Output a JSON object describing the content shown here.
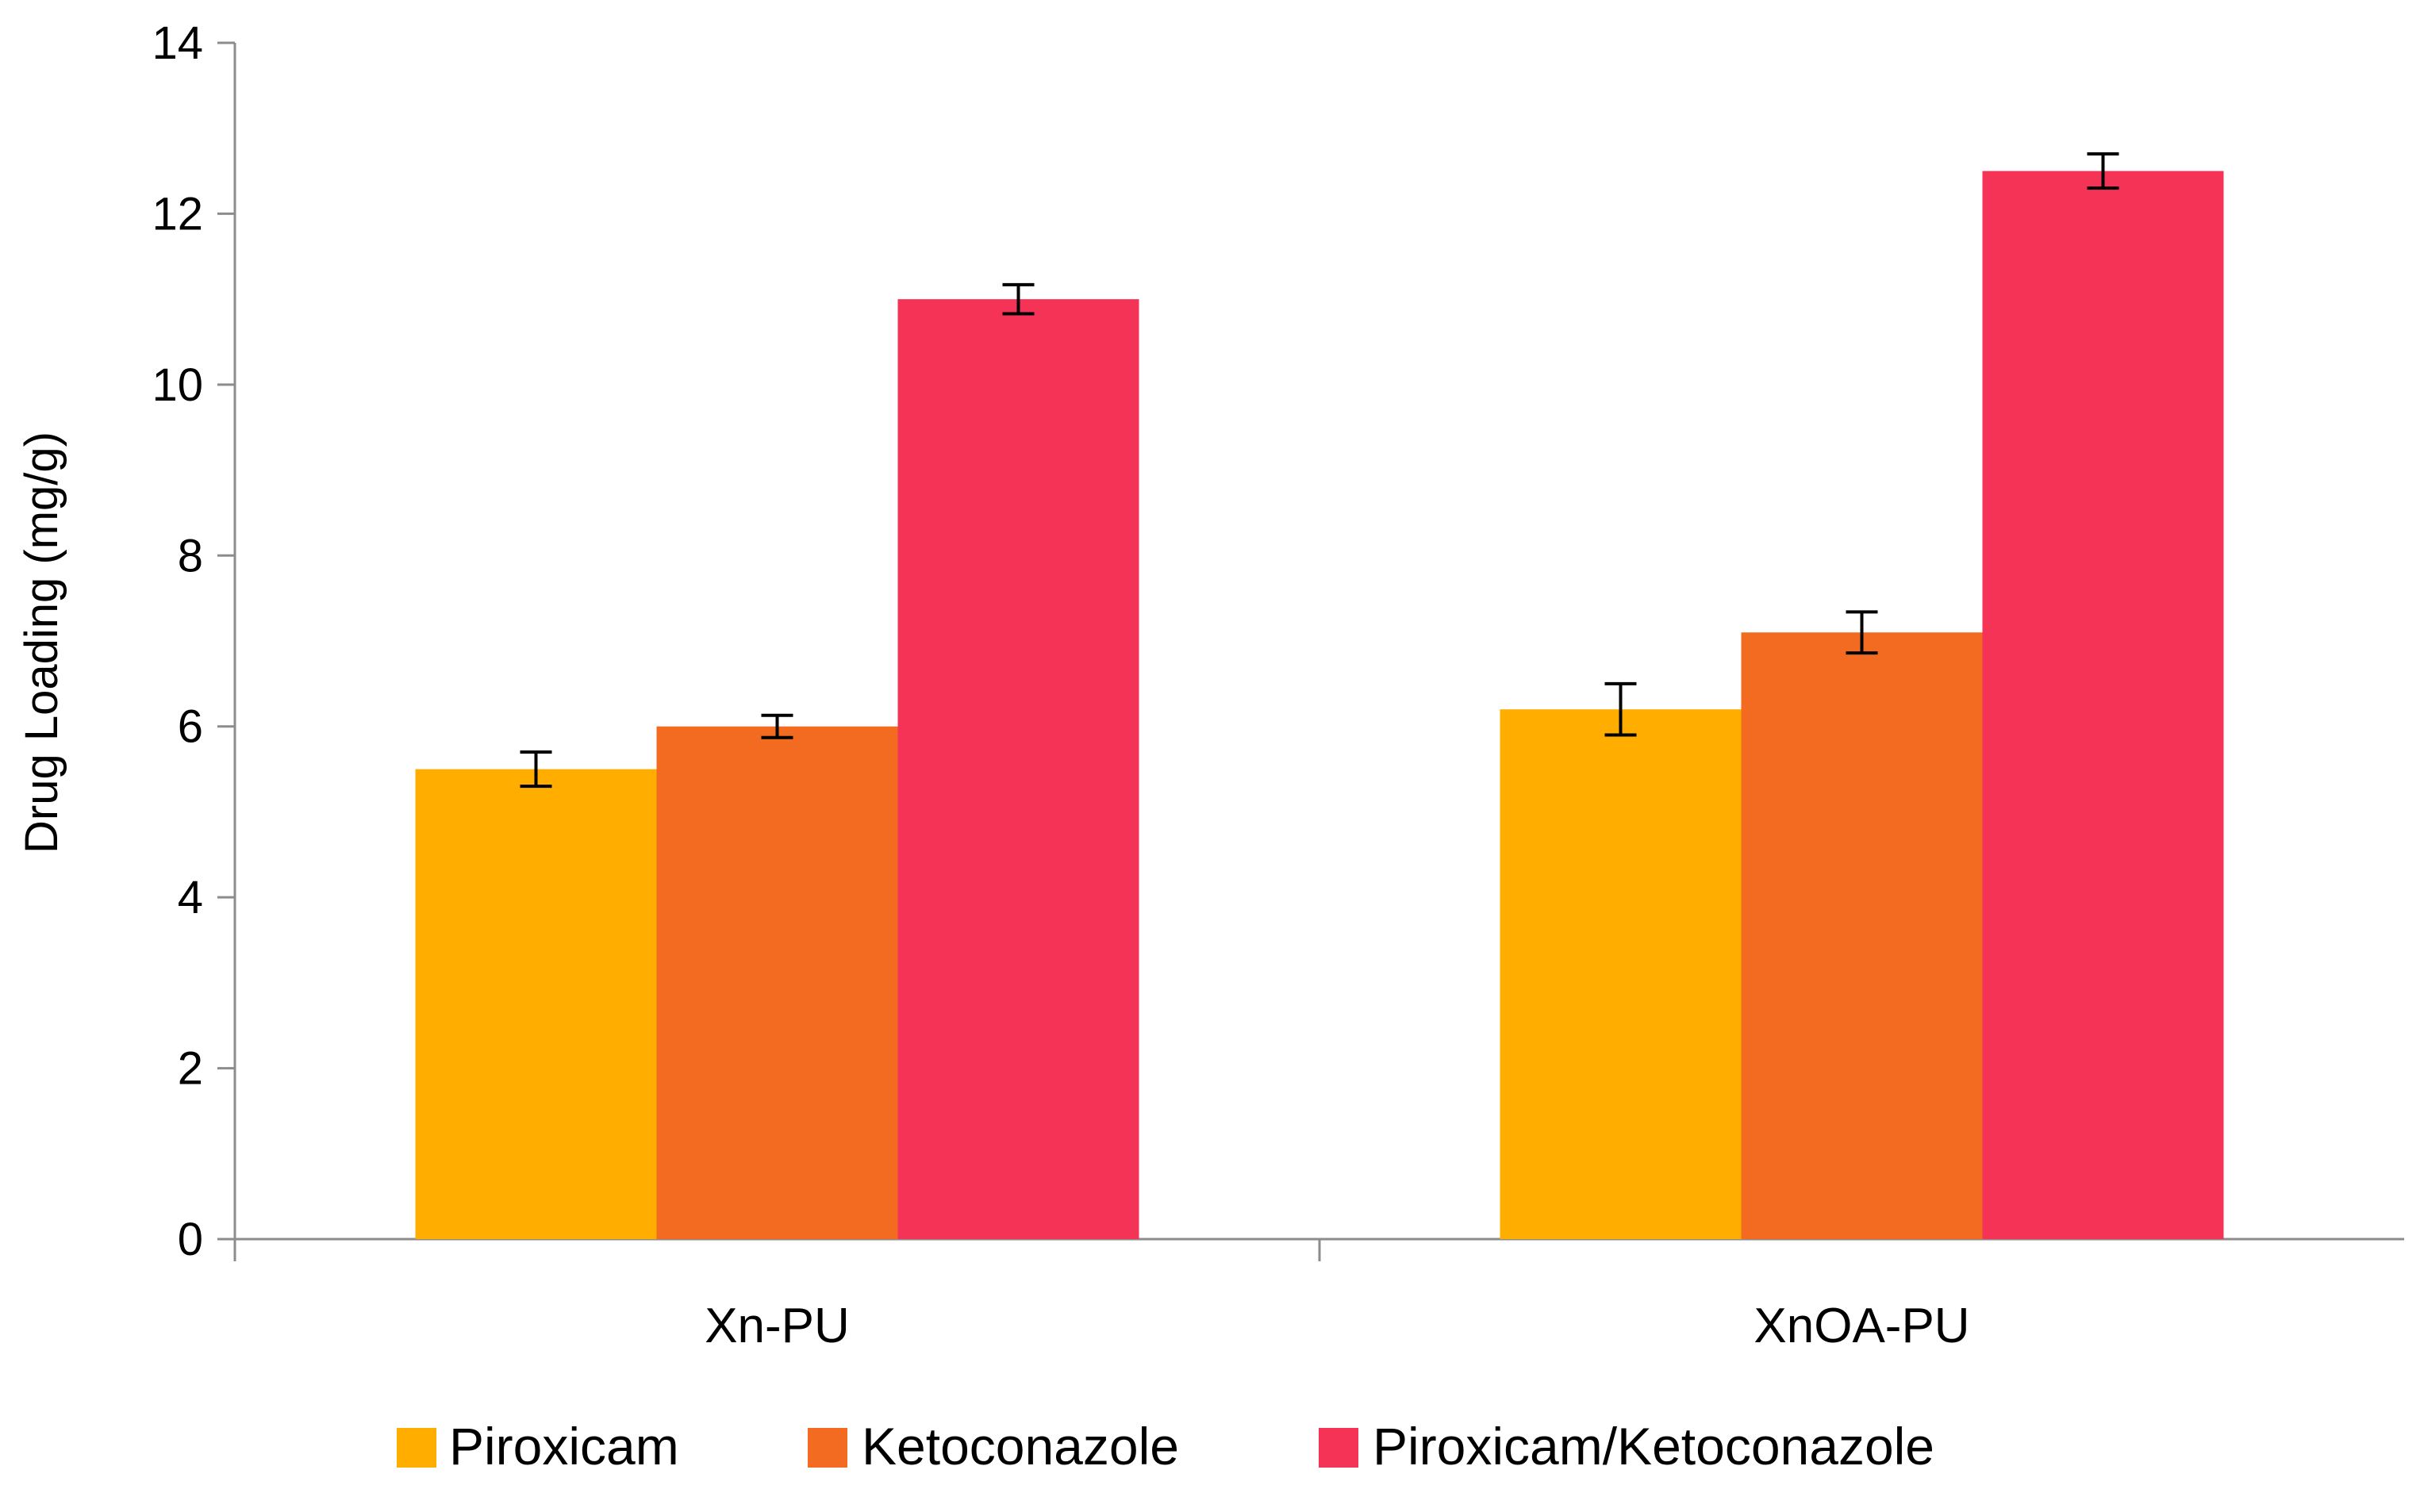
{
  "chart_data": {
    "type": "bar",
    "title": "",
    "xlabel": "",
    "ylabel": "Drug Loading (mg/g)",
    "ylim": [
      0,
      14
    ],
    "yticks": [
      "0",
      "2",
      "4",
      "6",
      "8",
      "10",
      "12",
      "14"
    ],
    "categories": [
      "Xn-PU",
      "XnOA-PU"
    ],
    "grid": false,
    "legend_position": "bottom",
    "series": [
      {
        "name": "Piroxicam",
        "color": "#FFAE00",
        "values": [
          5.5,
          6.2
        ],
        "errors": [
          0.2,
          0.3
        ]
      },
      {
        "name": "Ketoconazole",
        "color": "#F26B21",
        "values": [
          6.0,
          7.1
        ],
        "errors": [
          0.13,
          0.24
        ]
      },
      {
        "name": "Piroxicam/Ketoconazole",
        "color": "#F53357",
        "values": [
          11.0,
          12.5
        ],
        "errors": [
          0.17,
          0.2
        ]
      }
    ]
  }
}
